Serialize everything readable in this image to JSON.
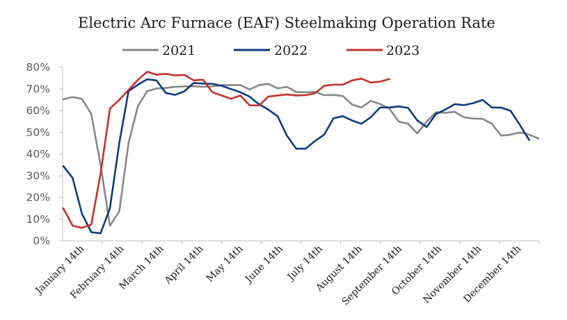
{
  "chart_data": {
    "type": "line",
    "title": "Electric Arc Furnace (EAF) Steelmaking Operation Rate",
    "xlabel": "",
    "ylabel": "",
    "ylim": [
      0,
      80
    ],
    "yticks": [
      "0%",
      "10%",
      "20%",
      "30%",
      "40%",
      "50%",
      "60%",
      "70%",
      "80%"
    ],
    "x_tick_labels": [
      "January 14th",
      "February 14th",
      "March 14th",
      "April 14th",
      "May 14th",
      "June 14th",
      "July 14th",
      "August 14th",
      "September 14th",
      "October 14th",
      "November 14th",
      "December 14th"
    ],
    "legend_position": "top",
    "grid": false,
    "series": [
      {
        "name": "2021",
        "color": "#878787",
        "values": [
          65.2,
          66.3,
          65.5,
          58.5,
          35.0,
          7.0,
          13.5,
          45.0,
          62.0,
          69.0,
          70.2,
          70.5,
          71.0,
          71.2,
          71.3,
          71.0,
          71.2,
          71.8,
          71.8,
          71.8,
          69.8,
          71.8,
          72.4,
          70.3,
          71.0,
          68.6,
          68.5,
          68.7,
          67.2,
          67.3,
          66.8,
          62.8,
          61.5,
          64.5,
          63.1,
          61.0,
          55.0,
          54.0,
          49.5,
          55.0,
          59.3,
          59.0,
          59.5,
          57.0,
          56.4,
          56.3,
          54.0,
          48.5,
          49.0,
          50.0,
          49.0,
          47.2
        ]
      },
      {
        "name": "2022",
        "color": "#0c3a7d",
        "values": [
          34.5,
          29.0,
          12.5,
          4.0,
          3.5,
          15.0,
          45.0,
          69.0,
          72.0,
          74.5,
          74.0,
          68.2,
          67.3,
          69.0,
          72.8,
          72.5,
          72.4,
          71.5,
          70.0,
          68.5,
          66.5,
          63.0,
          60.5,
          57.5,
          48.5,
          42.5,
          42.5,
          46.0,
          49.0,
          56.5,
          57.5,
          55.5,
          54.0,
          57.0,
          61.5,
          61.5,
          62.0,
          61.3,
          55.5,
          52.5,
          58.5,
          60.5,
          63.0,
          62.6,
          63.5,
          65.0,
          61.5,
          61.4,
          60.0,
          53.5,
          46.5
        ]
      },
      {
        "name": "2023",
        "color": "#c5302b",
        "values": [
          15.0,
          7.0,
          6.0,
          7.5,
          31.0,
          61.0,
          65.0,
          69.5,
          74.2,
          78.0,
          76.6,
          77.0,
          76.3,
          76.5,
          74.0,
          74.3,
          68.5,
          67.0,
          65.5,
          67.0,
          62.5,
          62.4,
          66.5,
          67.0,
          67.5,
          67.0,
          67.2,
          68.0,
          71.5,
          72.0,
          72.0,
          74.0,
          74.8,
          73.0,
          73.4,
          74.6
        ]
      }
    ]
  }
}
